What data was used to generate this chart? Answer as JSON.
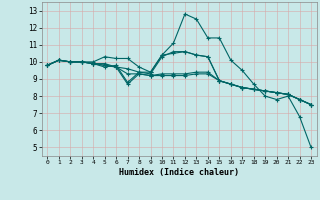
{
  "xlabel": "Humidex (Indice chaleur)",
  "xlim": [
    -0.5,
    23.5
  ],
  "ylim": [
    4.5,
    13.5
  ],
  "yticks": [
    5,
    6,
    7,
    8,
    9,
    10,
    11,
    12,
    13
  ],
  "xticks": [
    0,
    1,
    2,
    3,
    4,
    5,
    6,
    7,
    8,
    9,
    10,
    11,
    12,
    13,
    14,
    15,
    16,
    17,
    18,
    19,
    20,
    21,
    22,
    23
  ],
  "background_color": "#c8e8e8",
  "line_color": "#006666",
  "grid_color": "#b8d8d8",
  "series": [
    [
      9.8,
      10.1,
      10.0,
      10.0,
      9.9,
      9.7,
      9.8,
      8.8,
      9.4,
      9.4,
      10.4,
      11.1,
      12.8,
      12.5,
      11.4,
      11.4,
      10.1,
      9.5,
      8.7,
      8.0,
      7.8,
      8.0,
      6.8,
      5.0
    ],
    [
      9.8,
      10.1,
      10.0,
      10.0,
      9.9,
      9.9,
      9.7,
      9.6,
      9.4,
      9.3,
      10.3,
      10.6,
      10.6,
      10.4,
      10.3,
      8.9,
      8.7,
      8.5,
      8.4,
      8.3,
      8.2,
      8.1,
      7.8,
      7.5
    ],
    [
      9.8,
      10.1,
      10.0,
      10.0,
      9.9,
      9.8,
      9.7,
      8.7,
      9.3,
      9.2,
      9.2,
      9.2,
      9.2,
      9.3,
      9.3,
      8.9,
      8.7,
      8.5,
      8.4,
      8.3,
      8.2,
      8.1,
      7.8,
      7.5
    ],
    [
      9.8,
      10.1,
      10.0,
      10.0,
      10.0,
      10.3,
      10.2,
      10.2,
      9.7,
      9.4,
      10.4,
      10.5,
      10.6,
      10.4,
      10.3,
      8.9,
      8.7,
      8.5,
      8.4,
      8.3,
      8.2,
      8.1,
      7.8,
      7.5
    ],
    [
      9.8,
      10.1,
      10.0,
      10.0,
      9.9,
      9.8,
      9.7,
      9.3,
      9.3,
      9.2,
      9.3,
      9.3,
      9.3,
      9.4,
      9.4,
      8.9,
      8.7,
      8.5,
      8.4,
      8.3,
      8.2,
      8.1,
      7.8,
      7.5
    ]
  ]
}
